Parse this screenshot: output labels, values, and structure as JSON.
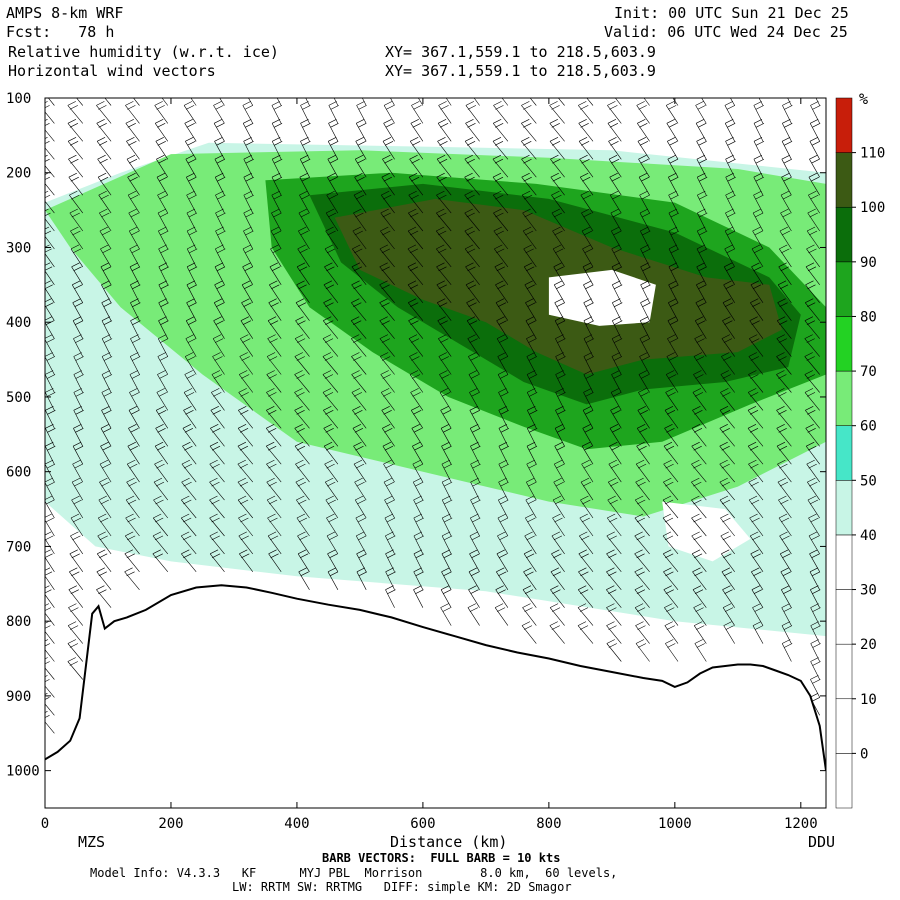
{
  "header": {
    "model_title": "AMPS 8-km WRF",
    "forecast": "Fcst:   78 h",
    "field_label": "Relative humidity (w.r.t. ice)",
    "vector_label": "Horizontal wind vectors",
    "init_time": "Init: 00 UTC Sun 21 Dec 25",
    "valid_time": "Valid: 06 UTC Wed 24 Dec 25",
    "xy_line1": "XY= 367.1,559.1 to 218.5,603.9",
    "xy_line2": "XY= 367.1,559.1 to 218.5,603.9"
  },
  "footer": {
    "barb_note": "BARB VECTORS:  FULL BARB = 10 kts",
    "model_info_1": "Model Info: V4.3.3   KF      MYJ PBL  Morrison        8.0 km,  60 levels,",
    "model_info_2": "LW: RRTM SW: RRTMG   DIFF: simple KM: 2D Smagor"
  },
  "colors": {
    "terrain_line": "#000000",
    "bands": [
      "#ffffff",
      "#ffffff",
      "#ffffff",
      "#ffffff",
      "#ffffff",
      "#c8f5e6",
      "#46e6c8",
      "#78eb78",
      "#23d223",
      "#1ea51e",
      "#0b6e0b",
      "#3c5a14",
      "#c81e0a"
    ]
  },
  "chart_data": {
    "type": "heatmap",
    "title": "Relative humidity (w.r.t. ice)",
    "xlabel": "Distance (km)",
    "ylabel": "",
    "xlim": [
      0,
      1240
    ],
    "ylim": [
      1050,
      100
    ],
    "x_ticks": [
      "0",
      "200",
      "400",
      "600",
      "800",
      "1000",
      "1200"
    ],
    "x_tick_values": [
      0,
      200,
      400,
      600,
      800,
      1000,
      1200
    ],
    "y_ticks": [
      "100",
      "200",
      "300",
      "400",
      "500",
      "600",
      "700",
      "800",
      "900",
      "1000"
    ],
    "y_tick_values": [
      100,
      200,
      300,
      400,
      500,
      600,
      700,
      800,
      900,
      1000
    ],
    "endpoint_labels": [
      "MZS",
      "DDU"
    ],
    "colorbar": {
      "unit": "%",
      "labels": [
        "0",
        "10",
        "20",
        "30",
        "40",
        "50",
        "60",
        "70",
        "80",
        "90",
        "100",
        "110"
      ],
      "levels": [
        -10,
        0,
        10,
        20,
        30,
        40,
        50,
        60,
        70,
        80,
        90,
        100,
        110,
        120
      ]
    },
    "terrain_pressure": [
      [
        0,
        985
      ],
      [
        20,
        975
      ],
      [
        40,
        960
      ],
      [
        55,
        930
      ],
      [
        65,
        860
      ],
      [
        75,
        790
      ],
      [
        85,
        780
      ],
      [
        95,
        810
      ],
      [
        110,
        800
      ],
      [
        130,
        795
      ],
      [
        160,
        785
      ],
      [
        200,
        765
      ],
      [
        240,
        755
      ],
      [
        280,
        752
      ],
      [
        320,
        755
      ],
      [
        360,
        762
      ],
      [
        400,
        770
      ],
      [
        450,
        778
      ],
      [
        500,
        785
      ],
      [
        550,
        795
      ],
      [
        600,
        808
      ],
      [
        650,
        820
      ],
      [
        700,
        832
      ],
      [
        750,
        842
      ],
      [
        800,
        850
      ],
      [
        850,
        860
      ],
      [
        900,
        868
      ],
      [
        950,
        876
      ],
      [
        980,
        880
      ],
      [
        1000,
        888
      ],
      [
        1020,
        882
      ],
      [
        1040,
        870
      ],
      [
        1060,
        862
      ],
      [
        1080,
        860
      ],
      [
        1100,
        858
      ],
      [
        1120,
        858
      ],
      [
        1140,
        860
      ],
      [
        1160,
        866
      ],
      [
        1180,
        872
      ],
      [
        1200,
        880
      ],
      [
        1215,
        900
      ],
      [
        1230,
        940
      ],
      [
        1240,
        1000
      ]
    ],
    "rh_regions": [
      {
        "level": 40,
        "points": [
          [
            0,
            240
          ],
          [
            120,
            200
          ],
          [
            260,
            160
          ],
          [
            600,
            165
          ],
          [
            900,
            170
          ],
          [
            1240,
            200
          ],
          [
            1240,
            820
          ],
          [
            1000,
            800
          ],
          [
            700,
            760
          ],
          [
            400,
            740
          ],
          [
            200,
            720
          ],
          [
            80,
            700
          ],
          [
            0,
            640
          ]
        ]
      },
      {
        "level": 60,
        "points": [
          [
            0,
            250
          ],
          [
            200,
            175
          ],
          [
            500,
            170
          ],
          [
            800,
            180
          ],
          [
            1100,
            195
          ],
          [
            1240,
            215
          ],
          [
            1240,
            560
          ],
          [
            1100,
            620
          ],
          [
            950,
            660
          ],
          [
            800,
            640
          ],
          [
            600,
            600
          ],
          [
            400,
            560
          ],
          [
            250,
            470
          ],
          [
            120,
            380
          ],
          [
            40,
            300
          ]
        ]
      },
      {
        "level": 80,
        "points": [
          [
            350,
            210
          ],
          [
            550,
            200
          ],
          [
            780,
            215
          ],
          [
            1000,
            240
          ],
          [
            1150,
            300
          ],
          [
            1240,
            380
          ],
          [
            1240,
            470
          ],
          [
            1120,
            510
          ],
          [
            980,
            560
          ],
          [
            860,
            570
          ],
          [
            760,
            540
          ],
          [
            640,
            500
          ],
          [
            520,
            440
          ],
          [
            420,
            380
          ],
          [
            360,
            300
          ]
        ]
      },
      {
        "level": 90,
        "points": [
          [
            420,
            230
          ],
          [
            600,
            215
          ],
          [
            800,
            235
          ],
          [
            1000,
            280
          ],
          [
            1150,
            340
          ],
          [
            1200,
            390
          ],
          [
            1180,
            460
          ],
          [
            1080,
            480
          ],
          [
            950,
            490
          ],
          [
            860,
            510
          ],
          [
            760,
            480
          ],
          [
            660,
            430
          ],
          [
            560,
            380
          ],
          [
            470,
            320
          ]
        ]
      },
      {
        "level": 100,
        "points": [
          [
            460,
            260
          ],
          [
            620,
            235
          ],
          [
            760,
            250
          ],
          [
            900,
            300
          ],
          [
            1050,
            340
          ],
          [
            1150,
            350
          ],
          [
            1170,
            410
          ],
          [
            1100,
            440
          ],
          [
            950,
            450
          ],
          [
            860,
            470
          ],
          [
            780,
            440
          ],
          [
            700,
            400
          ],
          [
            600,
            370
          ],
          [
            500,
            330
          ]
        ]
      },
      {
        "level": 30,
        "points": [
          [
            800,
            340
          ],
          [
            900,
            330
          ],
          [
            970,
            350
          ],
          [
            960,
            400
          ],
          [
            880,
            405
          ],
          [
            800,
            390
          ]
        ]
      },
      {
        "level": 30,
        "points": [
          [
            980,
            640
          ],
          [
            1080,
            650
          ],
          [
            1120,
            690
          ],
          [
            1060,
            720
          ],
          [
            990,
            700
          ]
        ]
      }
    ]
  }
}
